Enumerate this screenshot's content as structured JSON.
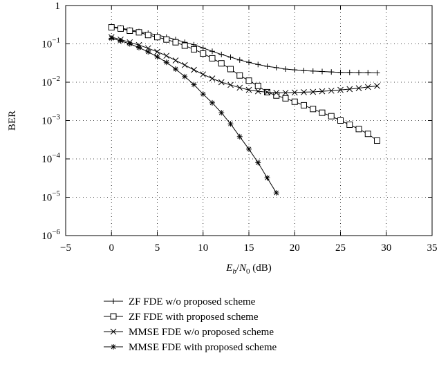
{
  "chart_data": {
    "type": "line",
    "title": "",
    "xlabel": "E_b/N_0 (dB)",
    "xlabel_parts": {
      "E": "E",
      "b": "b",
      "slash": "/",
      "N": "N",
      "zero": "0",
      "unit": " (dB)"
    },
    "ylabel": "BER",
    "xlim": [
      -5,
      35
    ],
    "ylim_log10": [
      -6,
      0
    ],
    "y_scale": "log",
    "grid": true,
    "legend_position": "bottom",
    "x_ticks": [
      {
        "value": -5,
        "label": "−5"
      },
      {
        "value": 0,
        "label": "0"
      },
      {
        "value": 5,
        "label": "5"
      },
      {
        "value": 10,
        "label": "10"
      },
      {
        "value": 15,
        "label": "15"
      },
      {
        "value": 20,
        "label": "20"
      },
      {
        "value": 25,
        "label": "25"
      },
      {
        "value": 30,
        "label": "30"
      },
      {
        "value": 35,
        "label": "35"
      }
    ],
    "y_ticks": [
      {
        "exp": 0,
        "base": "1",
        "sup": ""
      },
      {
        "exp": -1,
        "base": "10",
        "sup": "−1"
      },
      {
        "exp": -2,
        "base": "10",
        "sup": "−2"
      },
      {
        "exp": -3,
        "base": "10",
        "sup": "−3"
      },
      {
        "exp": -4,
        "base": "10",
        "sup": "−4"
      },
      {
        "exp": -5,
        "base": "10",
        "sup": "−5"
      },
      {
        "exp": -6,
        "base": "10",
        "sup": "−6"
      }
    ],
    "series": [
      {
        "name": "ZF FDE w/o proposed scheme",
        "marker": "plus",
        "x": [
          0,
          1,
          2,
          3,
          4,
          5,
          6,
          7,
          8,
          9,
          10,
          11,
          12,
          13,
          14,
          15,
          16,
          17,
          18,
          19,
          20,
          21,
          22,
          23,
          24,
          25,
          26,
          27,
          28,
          29
        ],
        "y": [
          0.28,
          0.26,
          0.23,
          0.21,
          0.19,
          0.17,
          0.15,
          0.13,
          0.11,
          0.095,
          0.078,
          0.064,
          0.053,
          0.045,
          0.038,
          0.033,
          0.029,
          0.026,
          0.024,
          0.022,
          0.021,
          0.02,
          0.0195,
          0.019,
          0.0185,
          0.018,
          0.018,
          0.0178,
          0.0177,
          0.0175
        ]
      },
      {
        "name": "ZF FDE with proposed scheme",
        "marker": "square",
        "x": [
          0,
          1,
          2,
          3,
          4,
          5,
          6,
          7,
          8,
          9,
          10,
          11,
          12,
          13,
          14,
          15,
          16,
          17,
          18,
          19,
          20,
          21,
          22,
          23,
          24,
          25,
          26,
          27,
          28,
          29
        ],
        "y": [
          0.27,
          0.25,
          0.22,
          0.2,
          0.17,
          0.15,
          0.13,
          0.11,
          0.09,
          0.072,
          0.056,
          0.042,
          0.031,
          0.022,
          0.015,
          0.011,
          0.008,
          0.0055,
          0.0045,
          0.0038,
          0.0031,
          0.0025,
          0.002,
          0.0016,
          0.0013,
          0.001,
          0.00078,
          0.0006,
          0.00045,
          0.0003
        ]
      },
      {
        "name": "MMSE FDE w/o proposed scheme",
        "marker": "cross",
        "x": [
          0,
          1,
          2,
          3,
          4,
          5,
          6,
          7,
          8,
          9,
          10,
          11,
          12,
          13,
          14,
          15,
          16,
          17,
          18,
          19,
          20,
          21,
          22,
          23,
          24,
          25,
          26,
          27,
          28,
          29
        ],
        "y": [
          0.15,
          0.13,
          0.11,
          0.093,
          0.077,
          0.062,
          0.049,
          0.037,
          0.028,
          0.021,
          0.016,
          0.0125,
          0.01,
          0.0085,
          0.0072,
          0.0063,
          0.0058,
          0.0055,
          0.0053,
          0.0053,
          0.0054,
          0.0055,
          0.0056,
          0.0058,
          0.006,
          0.0063,
          0.0066,
          0.007,
          0.0075,
          0.008
        ]
      },
      {
        "name": "MMSE FDE with proposed scheme",
        "marker": "asterisk",
        "x": [
          0,
          1,
          2,
          3,
          4,
          5,
          6,
          7,
          8,
          9,
          10,
          11,
          12,
          13,
          14,
          15,
          16,
          17,
          18
        ],
        "y": [
          0.14,
          0.12,
          0.1,
          0.08,
          0.062,
          0.046,
          0.033,
          0.022,
          0.014,
          0.0087,
          0.0049,
          0.0029,
          0.0016,
          0.00082,
          0.00038,
          0.00018,
          8e-05,
          3.2e-05,
          1.3e-05
        ]
      }
    ]
  }
}
